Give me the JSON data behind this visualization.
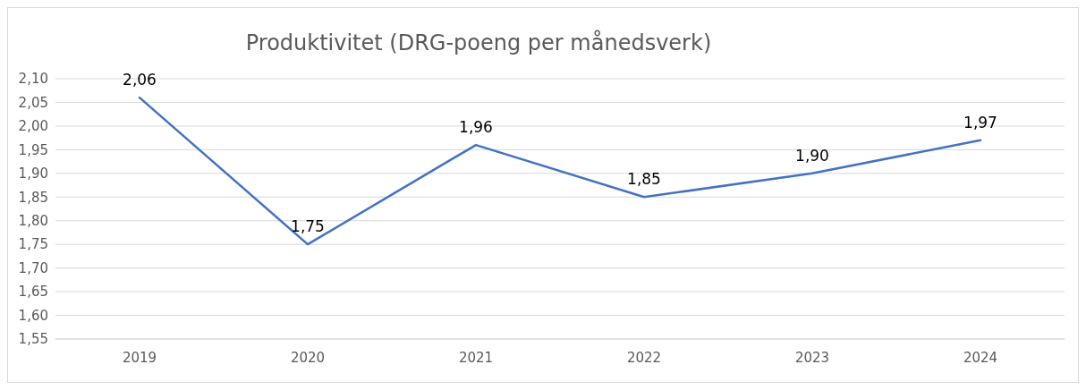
{
  "chart_data": {
    "type": "line",
    "title": "Produktivitet (DRG-poeng per månedsverk)",
    "categories": [
      "2019",
      "2020",
      "2021",
      "2022",
      "2023",
      "2024"
    ],
    "series": [
      {
        "color": "#4472c4",
        "values": [
          2.06,
          1.75,
          1.96,
          1.85,
          1.9,
          1.97
        ],
        "value_labels": [
          "2,06",
          "1,75",
          "1,96",
          "1,85",
          "1,90",
          "1,97"
        ]
      }
    ],
    "ylim": [
      1.55,
      2.1
    ],
    "yticks": [
      {
        "value": 1.55,
        "label": "1,55"
      },
      {
        "value": 1.6,
        "label": "1,60"
      },
      {
        "value": 1.65,
        "label": "1,65"
      },
      {
        "value": 1.7,
        "label": "1,70"
      },
      {
        "value": 1.75,
        "label": "1,75"
      },
      {
        "value": 1.8,
        "label": "1,80"
      },
      {
        "value": 1.85,
        "label": "1,85"
      },
      {
        "value": 1.9,
        "label": "1,90"
      },
      {
        "value": 1.95,
        "label": "1,95"
      },
      {
        "value": 2.0,
        "label": "2,00"
      },
      {
        "value": 2.05,
        "label": "2,05"
      },
      {
        "value": 2.1,
        "label": "2,10"
      }
    ],
    "grid": "y",
    "marker": "none",
    "line_style": "solid"
  }
}
